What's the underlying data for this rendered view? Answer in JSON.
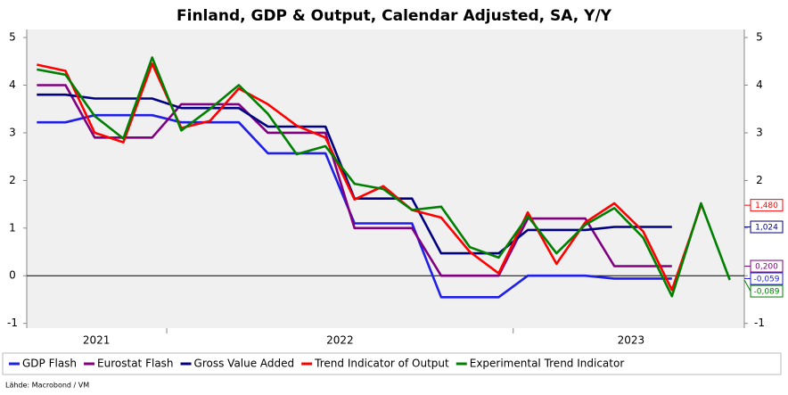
{
  "chart_data": {
    "type": "line",
    "title": "Finland, GDP & Output, Calendar Adjusted, SA, Y/Y",
    "source": "Lähde: Macrobond / VM",
    "x": [
      2021.625,
      2021.708,
      2021.792,
      2021.875,
      2021.958,
      2022.042,
      2022.125,
      2022.208,
      2022.292,
      2022.375,
      2022.458,
      2022.542,
      2022.625,
      2022.708,
      2022.792,
      2022.875,
      2022.958,
      2023.042,
      2023.125,
      2023.208,
      2023.292,
      2023.375,
      2023.458,
      2023.542,
      2023.625
    ],
    "xlim": [
      2021.596,
      2023.667
    ],
    "xticks": [
      {
        "value": 2021.797,
        "label": "2021"
      },
      {
        "value": 2022.5,
        "label": "2022"
      },
      {
        "value": 2023.34,
        "label": "2023"
      }
    ],
    "x_separators": [
      2022,
      2023
    ],
    "ylim": [
      -1.1,
      5.17
    ],
    "yticks": [
      -1,
      0,
      1,
      2,
      3,
      4,
      5
    ],
    "y2lim": [
      -1.1,
      5.17
    ],
    "y2ticks": [
      -1,
      0,
      1,
      2,
      3,
      4,
      5
    ],
    "zero_line": true,
    "legend": "bottom",
    "series": [
      {
        "name": "GDP Flash",
        "color": "#1f1fe6",
        "values": [
          3.22,
          3.22,
          3.37,
          3.37,
          3.37,
          3.22,
          3.22,
          3.22,
          2.57,
          2.57,
          2.57,
          1.1,
          1.1,
          1.1,
          -0.45,
          -0.45,
          -0.45,
          0.0,
          0.0,
          0.0,
          -0.06,
          -0.06,
          -0.059,
          null,
          null
        ],
        "end_label": "-0,059"
      },
      {
        "name": "Eurostat Flash",
        "color": "#800080",
        "values": [
          4.0,
          4.0,
          2.9,
          2.9,
          2.9,
          3.6,
          3.6,
          3.6,
          3.0,
          3.0,
          3.0,
          1.0,
          1.0,
          1.0,
          0.0,
          0.0,
          0.0,
          1.2,
          1.2,
          1.2,
          0.2,
          0.2,
          0.2,
          null,
          null
        ],
        "end_label": "0,200"
      },
      {
        "name": "Gross Value Added",
        "color": "#000080",
        "values": [
          3.8,
          3.8,
          3.72,
          3.72,
          3.72,
          3.52,
          3.52,
          3.52,
          3.13,
          3.13,
          3.13,
          1.62,
          1.62,
          1.62,
          0.47,
          0.47,
          0.47,
          0.96,
          0.96,
          0.96,
          1.024,
          1.024,
          1.024,
          null,
          null
        ],
        "end_label": "1,024"
      },
      {
        "name": "Trend Indicator of Output",
        "color": "#ff0000",
        "values": [
          4.43,
          4.3,
          3.0,
          2.8,
          4.45,
          3.1,
          3.25,
          3.93,
          3.6,
          3.15,
          2.9,
          1.6,
          1.88,
          1.38,
          1.22,
          0.5,
          0.05,
          1.33,
          0.25,
          1.12,
          1.52,
          0.93,
          -0.3,
          1.48,
          null
        ],
        "end_label": "1,480"
      },
      {
        "name": "Experimental Trend Indicator",
        "color": "#008000",
        "values": [
          4.33,
          4.22,
          3.35,
          2.88,
          4.58,
          3.05,
          3.5,
          4.0,
          3.4,
          2.55,
          2.72,
          1.93,
          1.82,
          1.38,
          1.45,
          0.6,
          0.38,
          1.25,
          0.47,
          1.07,
          1.42,
          0.8,
          -0.43,
          1.52,
          -0.089
        ],
        "end_label": "-0,089"
      }
    ]
  }
}
